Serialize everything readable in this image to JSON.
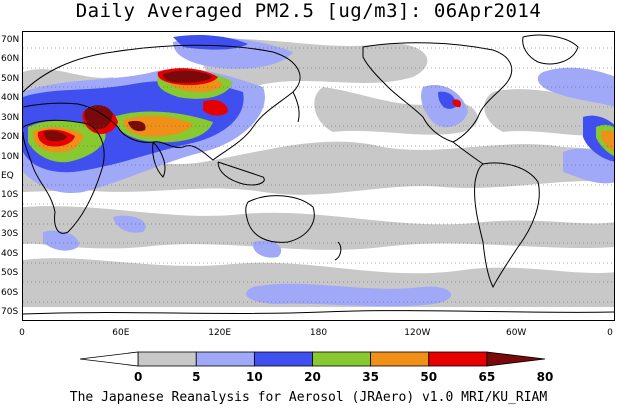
{
  "title": "Daily Averaged PM2.5 [ug/m3]: 06Apr2014",
  "footer": "The Japanese Reanalysis for Aerosol (JRAero) v1.0 MRI/KU_RIAM",
  "lat_labels": [
    "70N",
    "60N",
    "50N",
    "40N",
    "30N",
    "20N",
    "10N",
    "EQ",
    "10S",
    "20S",
    "30S",
    "40S",
    "50S",
    "60S",
    "70S"
  ],
  "lon_labels": [
    "0",
    "60E",
    "120E",
    "180",
    "120W",
    "60W",
    "0"
  ],
  "colorbar": {
    "ticks": [
      "0",
      "5",
      "10",
      "20",
      "35",
      "50",
      "65",
      "80"
    ],
    "colors": [
      "#ffffff",
      "#c8c8c8",
      "#a0a8f8",
      "#4050f0",
      "#88c830",
      "#f09018",
      "#e80000",
      "#7a0a0a"
    ]
  },
  "colors": {
    "light_gray": "#c8c8c8",
    "light_blue": "#a0a8f8",
    "blue": "#4050f0",
    "green": "#88c830",
    "orange": "#f09018",
    "red": "#e80000",
    "dark_red": "#7a0a0a"
  }
}
